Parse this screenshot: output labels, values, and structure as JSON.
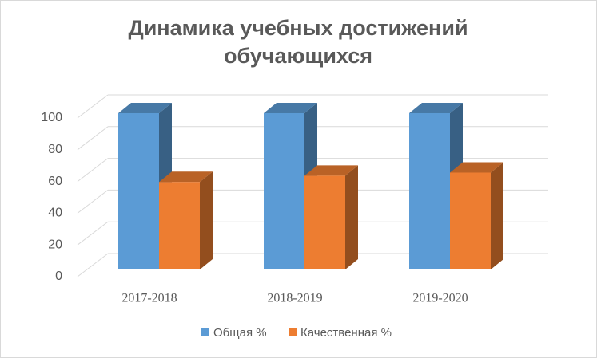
{
  "chart_data": {
    "type": "bar3d",
    "title": [
      "Динамика учебных достижений",
      "обучающихся"
    ],
    "categories": [
      "2017-2018",
      "2018-2019",
      "2019-2020"
    ],
    "series": [
      {
        "name": "Общая %",
        "color": "#5b9bd5",
        "values": [
          100,
          100,
          100
        ]
      },
      {
        "name": "Качественная %",
        "color": "#ed7d31",
        "values": [
          56,
          60,
          62
        ]
      }
    ],
    "ylim": [
      0,
      100
    ],
    "yticks": [
      0,
      20,
      40,
      60,
      80,
      100
    ],
    "grid": true,
    "legend": "bottom"
  }
}
